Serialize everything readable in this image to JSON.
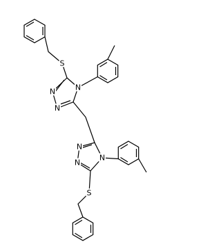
{
  "atoms": [
    {
      "label": "S"
    },
    {
      "label": "N"
    },
    {
      "label": "N"
    },
    {
      "label": "N"
    },
    {
      "label": "N"
    },
    {
      "label": "N"
    },
    {
      "label": "N"
    },
    {
      "label": "S"
    }
  ]
}
